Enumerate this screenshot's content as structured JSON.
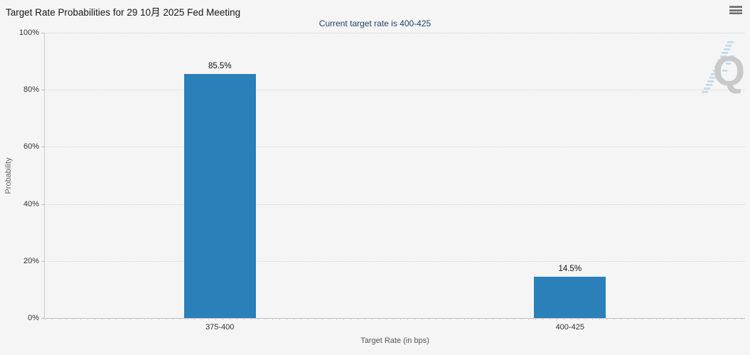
{
  "header": {
    "title": "Target Rate Probabilities for 29 10月 2025 Fed Meeting",
    "subtitle": "Current target rate is 400-425",
    "menu_icon": "hamburger-menu"
  },
  "watermark": {
    "letter": "Q",
    "name": "quikstrike-logo",
    "letter_color": "#c9c9c9",
    "dash_color": "#a9d3e8"
  },
  "chart_data": {
    "type": "bar",
    "title": "Target Rate Probabilities for 29 10月 2025 Fed Meeting",
    "subtitle": "Current target rate is 400-425",
    "categories": [
      "375-400",
      "400-425"
    ],
    "values": [
      85.5,
      14.5
    ],
    "value_labels": [
      "85.5%",
      "14.5%"
    ],
    "xlabel": "Target Rate (in bps)",
    "ylabel": "Probability",
    "ylim": [
      0,
      100
    ],
    "yticks": [
      0,
      20,
      40,
      60,
      80,
      100
    ],
    "ytick_labels": [
      "0%",
      "20%",
      "40%",
      "60%",
      "80%",
      "100%"
    ],
    "grid": "dotted horizontal gridlines",
    "legend": "none",
    "bar_color": "#2b80b9",
    "background_color": "#f5f5f5"
  }
}
